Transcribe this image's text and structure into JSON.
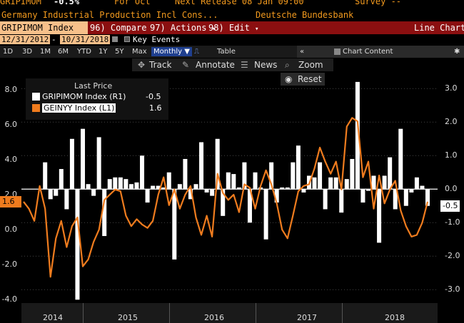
{
  "ticker_row": {
    "ticker": "GRIPIMOM",
    "last": "-0.5%",
    "period": "For Oct",
    "next_release": "Next Release 08 Jan 09:00",
    "survey": "Survey --"
  },
  "desc_row": {
    "description": "Germany Industrial Production Incl Cons...",
    "source": "Deutsche Bundesbank"
  },
  "function_bar": {
    "security": "GRIPIMOM Index",
    "compare": "96) Compare",
    "actions": "97) Actions",
    "edit": "98) Edit",
    "title": "Line Chart"
  },
  "date_row": {
    "start": "12/31/2012",
    "separator": "-",
    "end": "10/31/2018",
    "key_events": "Key Events"
  },
  "periods": [
    "1D",
    "3D",
    "1M",
    "6M",
    "YTD",
    "1Y",
    "5Y",
    "Max"
  ],
  "frequency": "Monthly",
  "table_label": "Table",
  "chart_content_label": "Chart Content",
  "tools": {
    "track": "Track",
    "annotate": "Annotate",
    "news": "News",
    "zoom": "Zoom",
    "reset": "Reset"
  },
  "legend": {
    "header": "Last Price",
    "items": [
      {
        "label": "GRIPIMOM Index  (R1)",
        "value": "-0.5",
        "color": "#ffffff"
      },
      {
        "label": "GEINYY Index  (L1)",
        "value": "1.6",
        "color": "#f07c1e"
      }
    ]
  },
  "colors": {
    "bar": "#ffffff",
    "line": "#f07c1e",
    "bloomberg_orange": "#f39a1e"
  },
  "chart_data": {
    "type": "bar+line",
    "left_axis": {
      "ticks": [
        "8.0",
        "6.0",
        "4.0",
        "2.0",
        "0.0",
        "-2.0",
        "-4.0"
      ],
      "range": [
        -4.2,
        9.8
      ]
    },
    "right_axis": {
      "ticks": [
        "3.0",
        "2.0",
        "1.0",
        "0.0",
        "-1.0",
        "-2.0",
        "-3.0"
      ],
      "range": [
        -3.4,
        3.9
      ]
    },
    "x_labels": [
      "2014",
      "2015",
      "2016",
      "2017",
      "2018"
    ],
    "last_values": {
      "left": "1.6",
      "right": "-0.5"
    },
    "series": [
      {
        "name": "GRIPIMOM Index (R1)",
        "axis": "right",
        "kind": "bar",
        "values": [
          0.8,
          -0.3,
          -0.2,
          0.6,
          -0.6,
          1.5,
          -3.3,
          1.8,
          0.15,
          -0.2,
          1.55,
          -1.4,
          0.3,
          0.35,
          0.35,
          0.3,
          0.15,
          0.2,
          1.0,
          -0.4,
          0.1,
          0.1,
          0.05,
          0.5,
          -2.1,
          0.15,
          0.9,
          -0.3,
          0.15,
          1.4,
          -0.1,
          -0.2,
          1.5,
          -0.8,
          0.5,
          0.45,
          0.05,
          0.8,
          -1.0,
          0.5,
          0.05,
          -1.5,
          0.8,
          -0.4,
          0.05,
          0.05,
          0.8,
          1.3,
          -0.1,
          0.4,
          0.35,
          0.8,
          -0.6,
          0.35,
          0.35,
          -0.7,
          0.3,
          0.9,
          3.2,
          -0.4,
          -0.05,
          0.4,
          -1.6,
          0.4,
          0.95,
          -0.6,
          1.8,
          -0.5,
          -0.1,
          0.35,
          0.1,
          -0.5
        ]
      },
      {
        "name": "GEINYY Index (L1)",
        "axis": "left",
        "kind": "line",
        "values": [
          1.6,
          1.2,
          0.5,
          2.5,
          1.2,
          -2.7,
          -0.5,
          0.5,
          -1.0,
          0.2,
          0.7,
          -2.1,
          -1.7,
          -0.7,
          0.0,
          1.7,
          2.0,
          2.3,
          2.2,
          0.8,
          0.2,
          0.6,
          0.3,
          0.1,
          0.5,
          2.0,
          3.0,
          1.4,
          2.3,
          1.2,
          2.0,
          2.5,
          0.7,
          -0.3,
          0.8,
          -0.4,
          3.2,
          2.1,
          1.7,
          2.0,
          1.0,
          2.6,
          2.4,
          1.2,
          2.5,
          3.4,
          2.6,
          1.5,
          0.0,
          -0.5,
          0.8,
          2.2,
          2.5,
          2.6,
          3.5,
          4.7,
          3.9,
          3.2,
          3.9,
          2.3,
          5.9,
          6.4,
          6.2,
          3.0,
          3.9,
          1.2,
          3.1,
          1.5,
          2.3,
          2.8,
          1.1,
          0.2,
          -0.4,
          -0.3,
          0.4,
          1.6
        ]
      }
    ]
  }
}
